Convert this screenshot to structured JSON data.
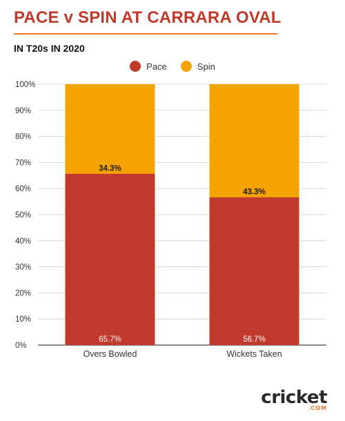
{
  "header": {
    "title": "PACE v SPIN AT CARRARA OVAL",
    "subtitle": "IN T20s IN 2020"
  },
  "legend": [
    {
      "label": "Pace",
      "color": "#c0392b"
    },
    {
      "label": "Spin",
      "color": "#f5a300"
    }
  ],
  "logo": {
    "main": "cricket",
    "sub": ".COM"
  },
  "chart_data": {
    "type": "bar",
    "stacked": true,
    "title": "PACE v SPIN AT CARRARA OVAL",
    "subtitle": "IN T20s IN 2020",
    "categories": [
      "Overs Bowled",
      "Wickets Taken"
    ],
    "series": [
      {
        "name": "Pace",
        "color": "#c0392b",
        "values": [
          65.7,
          56.7
        ],
        "labels": [
          "65.7%",
          "56.7%"
        ]
      },
      {
        "name": "Spin",
        "color": "#f5a300",
        "values": [
          34.3,
          43.3
        ],
        "labels": [
          "34.3%",
          "43.3%"
        ]
      }
    ],
    "ylim": [
      0,
      100
    ],
    "yticks": [
      "0%",
      "10%",
      "20%",
      "30%",
      "40%",
      "50%",
      "60%",
      "70%",
      "80%",
      "90%",
      "100%"
    ],
    "xlabel": "",
    "ylabel": "",
    "grid": true,
    "legend_position": "top-center"
  }
}
